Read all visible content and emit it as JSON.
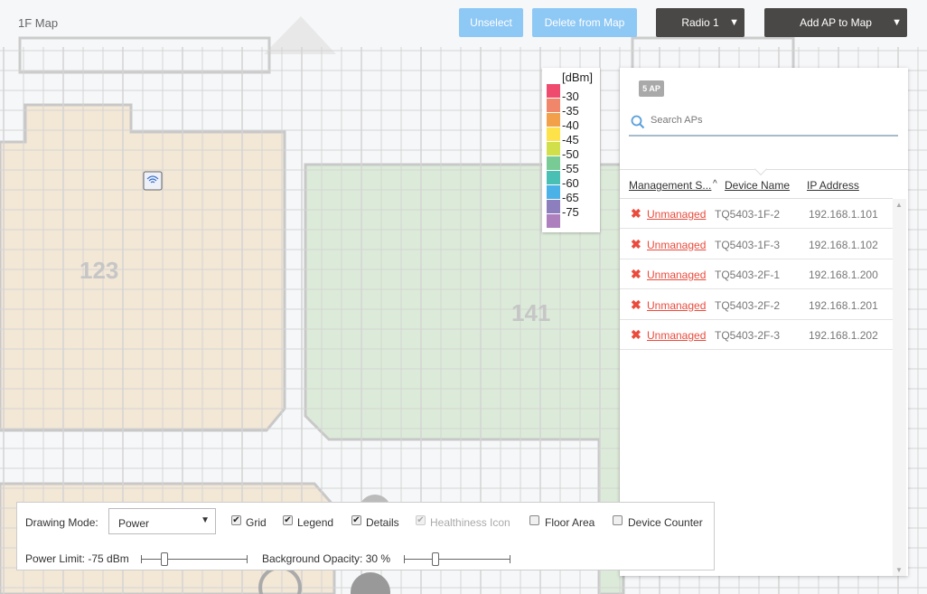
{
  "map": {
    "title": "1F Map",
    "rooms": [
      {
        "label": "123",
        "color": "#f3e7d6"
      },
      {
        "label": "141",
        "color": "#dcebd9"
      }
    ],
    "ap_icon": "wifi-icon"
  },
  "toolbar": {
    "unselect": "Unselect",
    "delete": "Delete from Map",
    "radio": "Radio 1",
    "add_ap": "Add AP to Map",
    "caret": "▼"
  },
  "legend": {
    "unit": "[dBm]",
    "items": [
      {
        "label": "-30",
        "color": "#ef4b6e"
      },
      {
        "label": "-35",
        "color": "#f0866a"
      },
      {
        "label": "-40",
        "color": "#f2a04a"
      },
      {
        "label": "-45",
        "color": "#fde24a"
      },
      {
        "label": "-50",
        "color": "#d1e04a"
      },
      {
        "label": "-55",
        "color": "#78cb94"
      },
      {
        "label": "-60",
        "color": "#4ac0b4"
      },
      {
        "label": "-65",
        "color": "#4ab2e6"
      },
      {
        "label": "-75",
        "color": "#8d7fbe"
      },
      {
        "label": "",
        "color": "#ad7fbd"
      }
    ]
  },
  "panel": {
    "badge": "5 AP",
    "search_placeholder": "Search APs",
    "columns": {
      "status": "Management S...",
      "sort": "^",
      "device": "Device Name",
      "ip": "IP Address"
    },
    "rows": [
      {
        "status": "Unmanaged",
        "device": "TQ5403-1F-2",
        "ip": "192.168.1.101"
      },
      {
        "status": "Unmanaged",
        "device": "TQ5403-1F-3",
        "ip": "192.168.1.102"
      },
      {
        "status": "Unmanaged",
        "device": "TQ5403-2F-1",
        "ip": "192.168.1.200"
      },
      {
        "status": "Unmanaged",
        "device": "TQ5403-2F-2",
        "ip": "192.168.1.201"
      },
      {
        "status": "Unmanaged",
        "device": "TQ5403-2F-3",
        "ip": "192.168.1.202"
      }
    ],
    "x_mark": "✖"
  },
  "controls": {
    "drawing_mode_label": "Drawing Mode:",
    "drawing_mode": "Power",
    "grid": "Grid",
    "legend": "Legend",
    "details": "Details",
    "healthiness": "Healthiness Icon",
    "floor_area": "Floor Area",
    "device_counter": "Device Counter",
    "check": "✔",
    "power_limit": "Power Limit: -75 dBm",
    "power_limit_fraction": 0.22,
    "bg_opacity": "Background Opacity: 30 %",
    "bg_opacity_fraction": 0.3
  }
}
